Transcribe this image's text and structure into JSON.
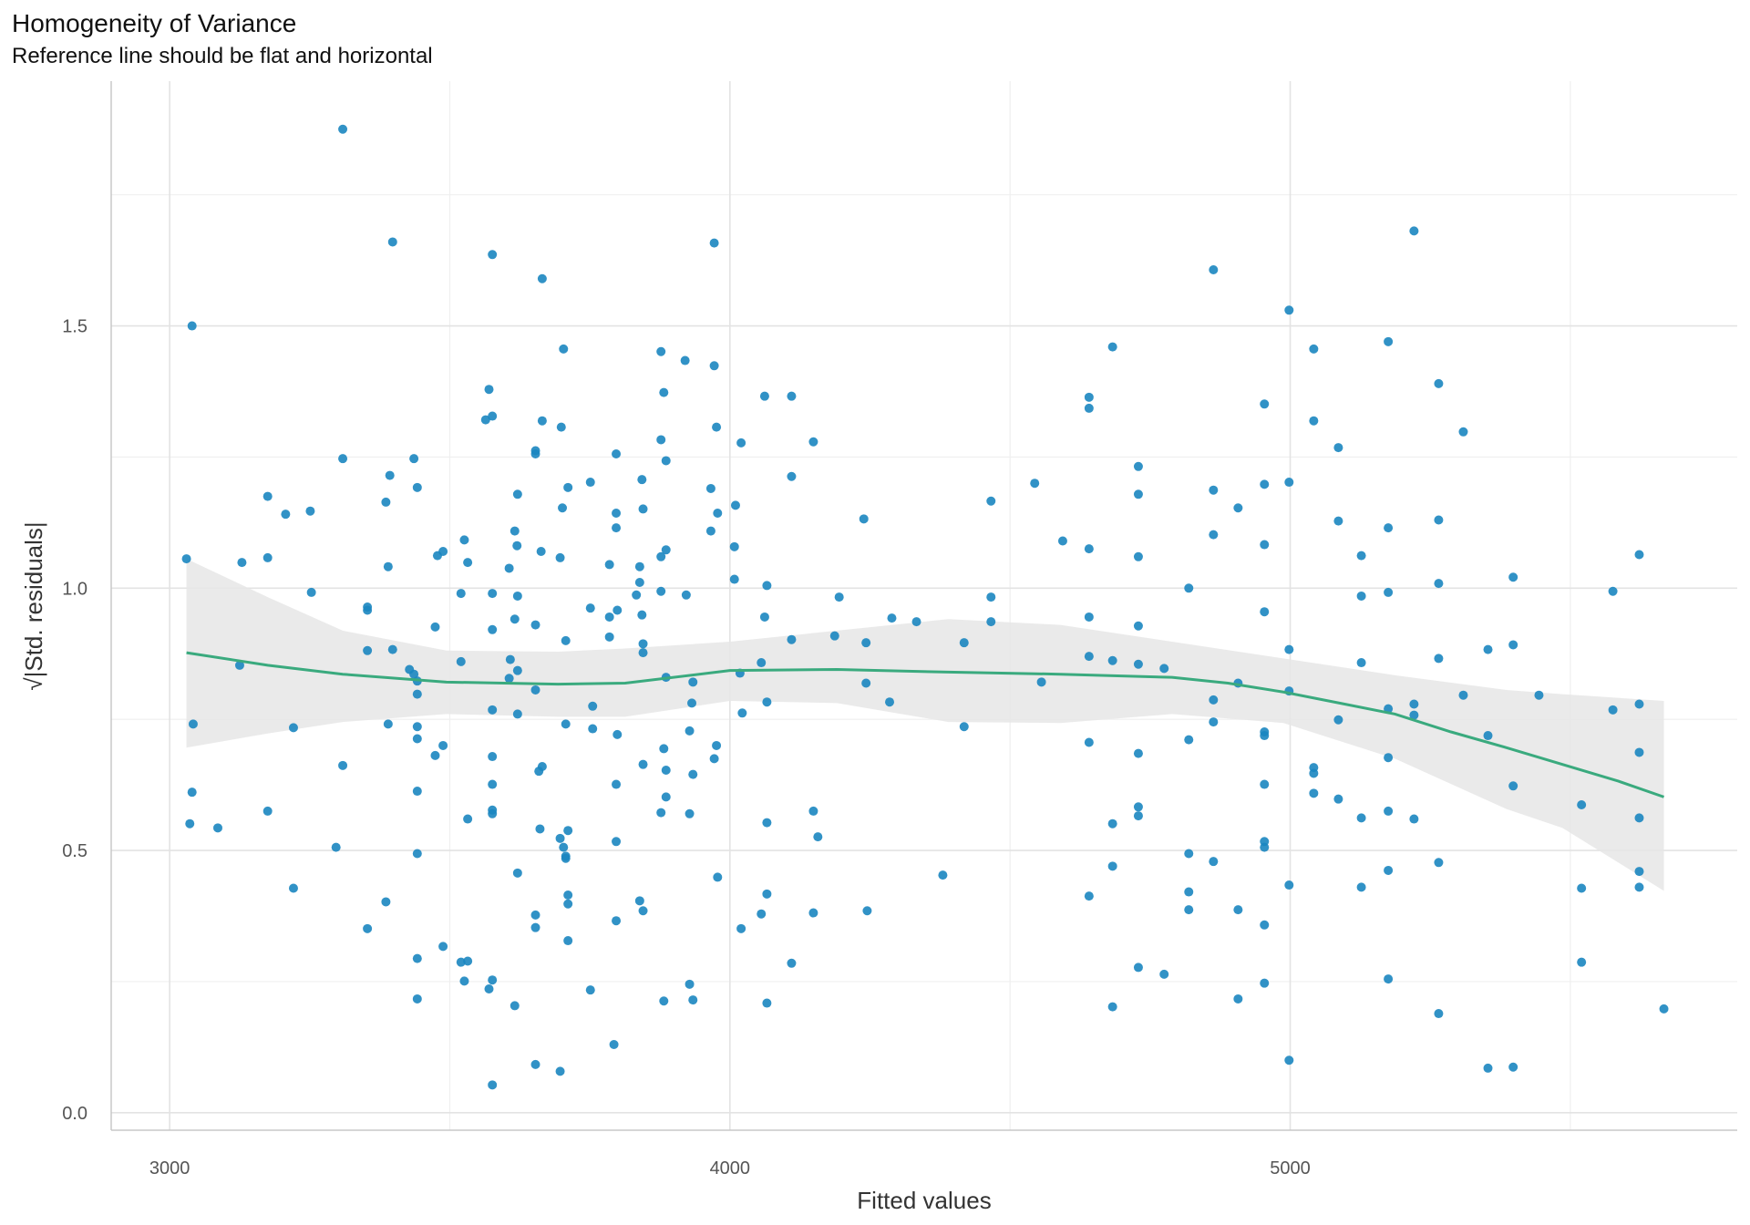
{
  "chart_data": {
    "type": "scatter",
    "title": "Homogeneity of Variance",
    "subtitle": "Reference line should be flat and horizontal",
    "xlabel": "Fitted values",
    "ylabel": "√|Std. residuals|",
    "xlim": [
      2900,
      5800
    ],
    "ylim": [
      -0.03,
      1.96
    ],
    "x_ticks": [
      3000,
      4000,
      5000
    ],
    "y_ticks": [
      0.0,
      0.5,
      1.0,
      1.5
    ],
    "x_tick_labels": [
      "3000",
      "4000",
      "5000"
    ],
    "y_tick_labels": [
      "0.0",
      "0.5",
      "1.0",
      "1.5"
    ],
    "grid": true,
    "colors": {
      "points": "#1b86c0",
      "line": "#3aaa7e",
      "band": "#e6e6e6",
      "grid": "#e3e3e3"
    },
    "points": [
      [
        3309,
        1.875
      ],
      [
        3398,
        1.66
      ],
      [
        3576,
        1.636
      ],
      [
        3665,
        1.59
      ],
      [
        3972,
        1.658
      ],
      [
        3040,
        1.5
      ],
      [
        4863,
        1.607
      ],
      [
        4998,
        1.53
      ],
      [
        5221,
        1.681
      ],
      [
        3703,
        1.456
      ],
      [
        3877,
        1.451
      ],
      [
        3920,
        1.434
      ],
      [
        3972,
        1.424
      ],
      [
        4683,
        1.46
      ],
      [
        5042,
        1.456
      ],
      [
        5175,
        1.47
      ],
      [
        5265,
        1.39
      ],
      [
        3570,
        1.379
      ],
      [
        3882,
        1.373
      ],
      [
        4062,
        1.366
      ],
      [
        4110,
        1.366
      ],
      [
        4641,
        1.364
      ],
      [
        4641,
        1.343
      ],
      [
        4954,
        1.351
      ],
      [
        3564,
        1.321
      ],
      [
        3576,
        1.328
      ],
      [
        3665,
        1.319
      ],
      [
        3699,
        1.307
      ],
      [
        3976,
        1.307
      ],
      [
        5042,
        1.319
      ],
      [
        5309,
        1.298
      ],
      [
        3877,
        1.283
      ],
      [
        4020,
        1.277
      ],
      [
        4149,
        1.279
      ],
      [
        5086,
        1.268
      ],
      [
        3653,
        1.262
      ],
      [
        3653,
        1.256
      ],
      [
        3797,
        1.256
      ],
      [
        3309,
        1.247
      ],
      [
        3436,
        1.247
      ],
      [
        3886,
        1.243
      ],
      [
        3393,
        1.215
      ],
      [
        4110,
        1.213
      ],
      [
        4729,
        1.232
      ],
      [
        3751,
        1.202
      ],
      [
        3843,
        1.207
      ],
      [
        4544,
        1.2
      ],
      [
        4954,
        1.198
      ],
      [
        4998,
        1.202
      ],
      [
        3175,
        1.175
      ],
      [
        3442,
        1.192
      ],
      [
        3621,
        1.179
      ],
      [
        3711,
        1.192
      ],
      [
        3966,
        1.19
      ],
      [
        4729,
        1.179
      ],
      [
        4863,
        1.187
      ],
      [
        3386,
        1.164
      ],
      [
        3207,
        1.141
      ],
      [
        3251,
        1.147
      ],
      [
        3797,
        1.143
      ],
      [
        3845,
        1.151
      ],
      [
        3978,
        1.143
      ],
      [
        4010,
        1.158
      ],
      [
        3701,
        1.153
      ],
      [
        4239,
        1.132
      ],
      [
        4466,
        1.166
      ],
      [
        4907,
        1.153
      ],
      [
        5086,
        1.128
      ],
      [
        5175,
        1.115
      ],
      [
        5265,
        1.13
      ],
      [
        3616,
        1.109
      ],
      [
        3797,
        1.115
      ],
      [
        3966,
        1.109
      ],
      [
        4863,
        1.102
      ],
      [
        3620,
        1.081
      ],
      [
        4008,
        1.079
      ],
      [
        4594,
        1.09
      ],
      [
        4954,
        1.083
      ],
      [
        3129,
        1.049
      ],
      [
        3175,
        1.058
      ],
      [
        3030,
        1.056
      ],
      [
        3390,
        1.041
      ],
      [
        3478,
        1.062
      ],
      [
        3488,
        1.07
      ],
      [
        3526,
        1.092
      ],
      [
        3532,
        1.049
      ],
      [
        3606,
        1.038
      ],
      [
        3663,
        1.07
      ],
      [
        3697,
        1.058
      ],
      [
        3785,
        1.045
      ],
      [
        3839,
        1.041
      ],
      [
        3877,
        1.06
      ],
      [
        3886,
        1.073
      ],
      [
        4641,
        1.075
      ],
      [
        4729,
        1.06
      ],
      [
        5127,
        1.062
      ],
      [
        5623,
        1.064
      ],
      [
        5398,
        1.021
      ],
      [
        5265,
        1.009
      ],
      [
        4008,
        1.017
      ],
      [
        4066,
        1.005
      ],
      [
        3839,
        1.011
      ],
      [
        3253,
        0.992
      ],
      [
        3520,
        0.99
      ],
      [
        3576,
        0.99
      ],
      [
        3621,
        0.985
      ],
      [
        3833,
        0.987
      ],
      [
        3877,
        0.994
      ],
      [
        3922,
        0.987
      ],
      [
        4195,
        0.983
      ],
      [
        4466,
        0.983
      ],
      [
        4819,
        1.0
      ],
      [
        5127,
        0.985
      ],
      [
        5175,
        0.992
      ],
      [
        5576,
        0.994
      ],
      [
        3353,
        0.964
      ],
      [
        3353,
        0.958
      ],
      [
        3751,
        0.962
      ],
      [
        3799,
        0.958
      ],
      [
        3843,
        0.949
      ],
      [
        3785,
        0.945
      ],
      [
        3616,
        0.941
      ],
      [
        4062,
        0.945
      ],
      [
        4289,
        0.943
      ],
      [
        4333,
        0.936
      ],
      [
        4466,
        0.936
      ],
      [
        4641,
        0.945
      ],
      [
        4954,
        0.955
      ],
      [
        3474,
        0.926
      ],
      [
        3576,
        0.921
      ],
      [
        3653,
        0.93
      ],
      [
        4729,
        0.928
      ],
      [
        3707,
        0.9
      ],
      [
        3785,
        0.907
      ],
      [
        3845,
        0.894
      ],
      [
        4110,
        0.902
      ],
      [
        4187,
        0.909
      ],
      [
        4243,
        0.896
      ],
      [
        4418,
        0.896
      ],
      [
        5398,
        0.892
      ],
      [
        5353,
        0.883
      ],
      [
        4998,
        0.883
      ],
      [
        3353,
        0.881
      ],
      [
        3398,
        0.883
      ],
      [
        3845,
        0.877
      ],
      [
        3608,
        0.864
      ],
      [
        3621,
        0.843
      ],
      [
        3520,
        0.86
      ],
      [
        3125,
        0.853
      ],
      [
        4641,
        0.87
      ],
      [
        4683,
        0.862
      ],
      [
        4729,
        0.855
      ],
      [
        4775,
        0.847
      ],
      [
        5127,
        0.858
      ],
      [
        5265,
        0.866
      ],
      [
        4056,
        0.858
      ],
      [
        4018,
        0.838
      ],
      [
        3428,
        0.845
      ],
      [
        3436,
        0.836
      ],
      [
        3442,
        0.823
      ],
      [
        3606,
        0.828
      ],
      [
        3886,
        0.83
      ],
      [
        3934,
        0.821
      ],
      [
        4243,
        0.819
      ],
      [
        4556,
        0.821
      ],
      [
        4907,
        0.819
      ],
      [
        4998,
        0.804
      ],
      [
        3442,
        0.798
      ],
      [
        3653,
        0.806
      ],
      [
        5309,
        0.796
      ],
      [
        5444,
        0.796
      ],
      [
        3932,
        0.781
      ],
      [
        4066,
        0.783
      ],
      [
        4285,
        0.783
      ],
      [
        4863,
        0.787
      ],
      [
        5221,
        0.779
      ],
      [
        5623,
        0.779
      ],
      [
        3576,
        0.768
      ],
      [
        3621,
        0.76
      ],
      [
        3755,
        0.775
      ],
      [
        4022,
        0.762
      ],
      [
        5175,
        0.77
      ],
      [
        5576,
        0.768
      ],
      [
        5221,
        0.758
      ],
      [
        3042,
        0.741
      ],
      [
        3390,
        0.741
      ],
      [
        3442,
        0.736
      ],
      [
        3221,
        0.734
      ],
      [
        3707,
        0.741
      ],
      [
        3755,
        0.732
      ],
      [
        3799,
        0.721
      ],
      [
        3928,
        0.728
      ],
      [
        4418,
        0.736
      ],
      [
        4863,
        0.745
      ],
      [
        5086,
        0.749
      ],
      [
        4954,
        0.726
      ],
      [
        4954,
        0.719
      ],
      [
        5353,
        0.719
      ],
      [
        3442,
        0.713
      ],
      [
        3488,
        0.7
      ],
      [
        3474,
        0.681
      ],
      [
        3576,
        0.679
      ],
      [
        3882,
        0.694
      ],
      [
        3976,
        0.7
      ],
      [
        4641,
        0.706
      ],
      [
        4819,
        0.711
      ],
      [
        4729,
        0.685
      ],
      [
        5175,
        0.677
      ],
      [
        5623,
        0.687
      ],
      [
        3309,
        0.662
      ],
      [
        3665,
        0.66
      ],
      [
        3659,
        0.651
      ],
      [
        3845,
        0.664
      ],
      [
        3886,
        0.653
      ],
      [
        3934,
        0.645
      ],
      [
        3972,
        0.675
      ],
      [
        5042,
        0.658
      ],
      [
        5042,
        0.647
      ],
      [
        3040,
        0.611
      ],
      [
        3442,
        0.613
      ],
      [
        3576,
        0.626
      ],
      [
        3797,
        0.626
      ],
      [
        3886,
        0.602
      ],
      [
        4954,
        0.626
      ],
      [
        5398,
        0.623
      ],
      [
        5042,
        0.609
      ],
      [
        5086,
        0.598
      ],
      [
        5520,
        0.587
      ],
      [
        3175,
        0.575
      ],
      [
        3576,
        0.577
      ],
      [
        3576,
        0.57
      ],
      [
        3877,
        0.572
      ],
      [
        3928,
        0.57
      ],
      [
        4149,
        0.575
      ],
      [
        5175,
        0.575
      ],
      [
        3036,
        0.551
      ],
      [
        3086,
        0.543
      ],
      [
        3532,
        0.56
      ],
      [
        3661,
        0.541
      ],
      [
        3711,
        0.538
      ],
      [
        4066,
        0.553
      ],
      [
        4683,
        0.551
      ],
      [
        4729,
        0.566
      ],
      [
        4729,
        0.583
      ],
      [
        5127,
        0.562
      ],
      [
        5221,
        0.56
      ],
      [
        5623,
        0.562
      ],
      [
        4157,
        0.526
      ],
      [
        3697,
        0.523
      ],
      [
        3703,
        0.506
      ],
      [
        3797,
        0.517
      ],
      [
        4954,
        0.517
      ],
      [
        4954,
        0.506
      ],
      [
        3297,
        0.506
      ],
      [
        3442,
        0.494
      ],
      [
        3707,
        0.489
      ],
      [
        3707,
        0.485
      ],
      [
        4819,
        0.494
      ],
      [
        4683,
        0.47
      ],
      [
        4863,
        0.479
      ],
      [
        5265,
        0.477
      ],
      [
        5175,
        0.462
      ],
      [
        3621,
        0.457
      ],
      [
        3978,
        0.449
      ],
      [
        4380,
        0.453
      ],
      [
        5623,
        0.46
      ],
      [
        3221,
        0.428
      ],
      [
        4998,
        0.434
      ],
      [
        5127,
        0.43
      ],
      [
        5520,
        0.428
      ],
      [
        5623,
        0.43
      ],
      [
        4066,
        0.417
      ],
      [
        4641,
        0.413
      ],
      [
        3711,
        0.415
      ],
      [
        4819,
        0.421
      ],
      [
        3386,
        0.402
      ],
      [
        3839,
        0.404
      ],
      [
        3711,
        0.398
      ],
      [
        3845,
        0.385
      ],
      [
        3653,
        0.377
      ],
      [
        4056,
        0.379
      ],
      [
        4149,
        0.381
      ],
      [
        4245,
        0.385
      ],
      [
        4819,
        0.387
      ],
      [
        4907,
        0.387
      ],
      [
        3353,
        0.351
      ],
      [
        3653,
        0.353
      ],
      [
        3797,
        0.366
      ],
      [
        4020,
        0.351
      ],
      [
        4954,
        0.358
      ],
      [
        3711,
        0.328
      ],
      [
        3488,
        0.317
      ],
      [
        3442,
        0.294
      ],
      [
        3520,
        0.287
      ],
      [
        3532,
        0.289
      ],
      [
        4110,
        0.285
      ],
      [
        5520,
        0.287
      ],
      [
        4729,
        0.277
      ],
      [
        4775,
        0.264
      ],
      [
        3526,
        0.251
      ],
      [
        3576,
        0.253
      ],
      [
        5175,
        0.255
      ],
      [
        4954,
        0.247
      ],
      [
        3570,
        0.236
      ],
      [
        3751,
        0.234
      ],
      [
        3928,
        0.245
      ],
      [
        3442,
        0.217
      ],
      [
        3882,
        0.213
      ],
      [
        3934,
        0.215
      ],
      [
        4907,
        0.217
      ],
      [
        3616,
        0.204
      ],
      [
        4066,
        0.209
      ],
      [
        4683,
        0.202
      ],
      [
        5667,
        0.198
      ],
      [
        5265,
        0.189
      ],
      [
        3793,
        0.13
      ],
      [
        4998,
        0.1
      ],
      [
        3653,
        0.092
      ],
      [
        3697,
        0.079
      ],
      [
        5353,
        0.085
      ],
      [
        5398,
        0.087
      ],
      [
        3576,
        0.053
      ]
    ],
    "smooth": {
      "x": [
        3030,
        3175,
        3309,
        3494,
        3693,
        3813,
        4000,
        4191,
        4390,
        4590,
        4789,
        4889,
        4988,
        5088,
        5187,
        5287,
        5386,
        5486,
        5586,
        5667
      ],
      "y": [
        0.877,
        0.853,
        0.836,
        0.821,
        0.817,
        0.819,
        0.843,
        0.845,
        0.84,
        0.836,
        0.83,
        0.819,
        0.802,
        0.781,
        0.76,
        0.726,
        0.696,
        0.664,
        0.632,
        0.602
      ]
    },
    "band": {
      "x": [
        3030,
        3175,
        3309,
        3494,
        3693,
        3813,
        4000,
        4191,
        4390,
        4590,
        4789,
        4988,
        5187,
        5386,
        5486,
        5667
      ],
      "upper": [
        1.056,
        0.983,
        0.919,
        0.881,
        0.879,
        0.885,
        0.898,
        0.919,
        0.941,
        0.93,
        0.898,
        0.866,
        0.834,
        0.806,
        0.798,
        0.785
      ],
      "lower": [
        0.696,
        0.723,
        0.745,
        0.76,
        0.755,
        0.755,
        0.785,
        0.781,
        0.745,
        0.743,
        0.76,
        0.743,
        0.675,
        0.579,
        0.543,
        0.423
      ]
    }
  }
}
